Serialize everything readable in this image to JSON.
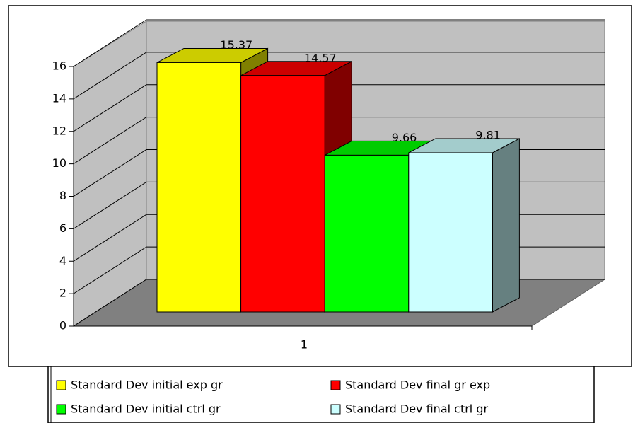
{
  "chart_data": {
    "type": "bar3d",
    "categories": [
      "1"
    ],
    "series": [
      {
        "name": "Standard Dev initial exp gr",
        "color": "#ffff00",
        "values": [
          15.37
        ]
      },
      {
        "name": "Standard Dev final gr exp",
        "color": "#ff0000",
        "values": [
          14.57
        ]
      },
      {
        "name": "Standard Dev initial ctrl gr",
        "color": "#00ff00",
        "values": [
          9.66
        ]
      },
      {
        "name": "Standard Dev final ctrl gr",
        "color": "#ccffff",
        "values": [
          9.81
        ]
      }
    ],
    "ylim": [
      0,
      16
    ],
    "yticks": [
      0,
      2,
      4,
      6,
      8,
      10,
      12,
      14,
      16
    ],
    "grid": true,
    "legend": "bottom"
  }
}
